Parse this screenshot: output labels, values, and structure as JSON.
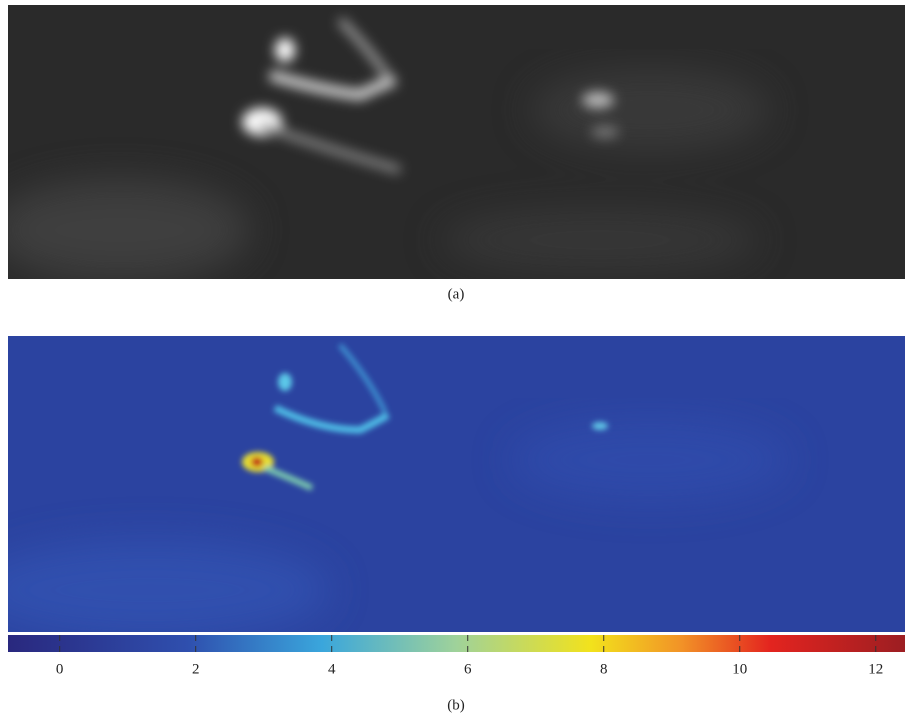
{
  "panels": [
    {
      "label": "(a)"
    },
    {
      "label": "(b)",
      "colorbar": {
        "lim": [
          -0.76,
          12.43
        ],
        "ticks": [
          0,
          2,
          4,
          6,
          8,
          10,
          12
        ]
      }
    }
  ]
}
